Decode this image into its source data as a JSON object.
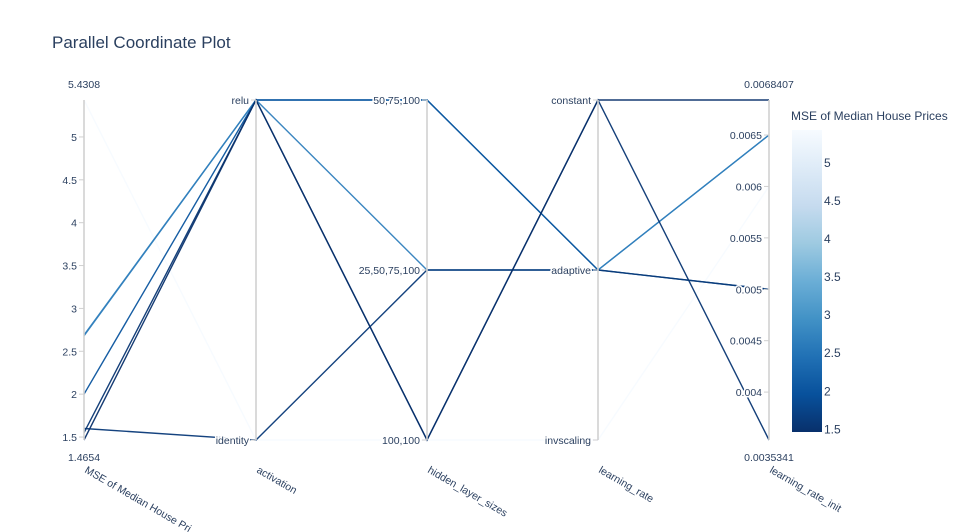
{
  "chart_data": {
    "type": "parallel_coordinates",
    "title": "Parallel Coordinate Plot",
    "dimensions": [
      {
        "name": "MSE of Median House Prices",
        "display_label": "MSE of Median House Pri",
        "kind": "numeric",
        "range": [
          1.4654,
          5.4308
        ],
        "range_labels": [
          "1.4654",
          "5.4308"
        ],
        "ticks": [
          1.5,
          2,
          2.5,
          3,
          3.5,
          4,
          4.5,
          5
        ],
        "tick_labels": [
          "1.5",
          "2",
          "2.5",
          "3",
          "3.5",
          "4",
          "4.5",
          "5"
        ]
      },
      {
        "name": "activation",
        "kind": "categorical",
        "categories": [
          "identity",
          "relu"
        ]
      },
      {
        "name": "hidden_layer_sizes",
        "kind": "categorical",
        "categories": [
          "100,100",
          "25,50,75,100",
          "50,75,100"
        ]
      },
      {
        "name": "learning_rate",
        "kind": "categorical",
        "categories": [
          "invscaling",
          "adaptive",
          "constant"
        ]
      },
      {
        "name": "learning_rate_init",
        "kind": "numeric",
        "range": [
          0.0035341,
          0.0068407
        ],
        "range_labels": [
          "0.0035341",
          "0.0068407"
        ],
        "ticks": [
          0.004,
          0.0045,
          0.005,
          0.0055,
          0.006,
          0.0065
        ],
        "tick_labels": [
          "0.004",
          "0.0045",
          "0.005",
          "0.0055",
          "0.006",
          "0.0065"
        ]
      }
    ],
    "rows": [
      {
        "mse": 5.4308,
        "activation": "identity",
        "hidden_layer_sizes": "100,100",
        "learning_rate": "invscaling",
        "learning_rate_init": 0.006
      },
      {
        "mse": 2.69,
        "activation": "relu",
        "hidden_layer_sizes": "50,75,100",
        "learning_rate": "adaptive",
        "learning_rate_init": 0.0065
      },
      {
        "mse": 2.68,
        "activation": "relu",
        "hidden_layer_sizes": "25,50,75,100",
        "learning_rate": "adaptive",
        "learning_rate_init": 0.0065
      },
      {
        "mse": 2.0,
        "activation": "relu",
        "hidden_layer_sizes": "50,75,100",
        "learning_rate": "adaptive",
        "learning_rate_init": 0.005
      },
      {
        "mse": 1.6,
        "activation": "identity",
        "hidden_layer_sizes": "25,50,75,100",
        "learning_rate": "adaptive",
        "learning_rate_init": 0.005
      },
      {
        "mse": 1.55,
        "activation": "relu",
        "hidden_layer_sizes": "100,100",
        "learning_rate": "constant",
        "learning_rate_init": 0.0035341
      },
      {
        "mse": 1.4654,
        "activation": "relu",
        "hidden_layer_sizes": "100,100",
        "learning_rate": "constant",
        "learning_rate_init": 0.0068407
      }
    ],
    "colorbar": {
      "title": "MSE of Median House Prices",
      "colorscale": "Blues (reversed)",
      "range": [
        1.4654,
        5.4308
      ],
      "ticks": [
        1.5,
        2,
        2.5,
        3,
        3.5,
        4,
        4.5,
        5
      ],
      "tick_labels": [
        "1.5",
        "2",
        "2.5",
        "3",
        "3.5",
        "4",
        "4.5",
        "5"
      ],
      "color_low": "#08306b",
      "color_high": "#f7fbff"
    }
  }
}
